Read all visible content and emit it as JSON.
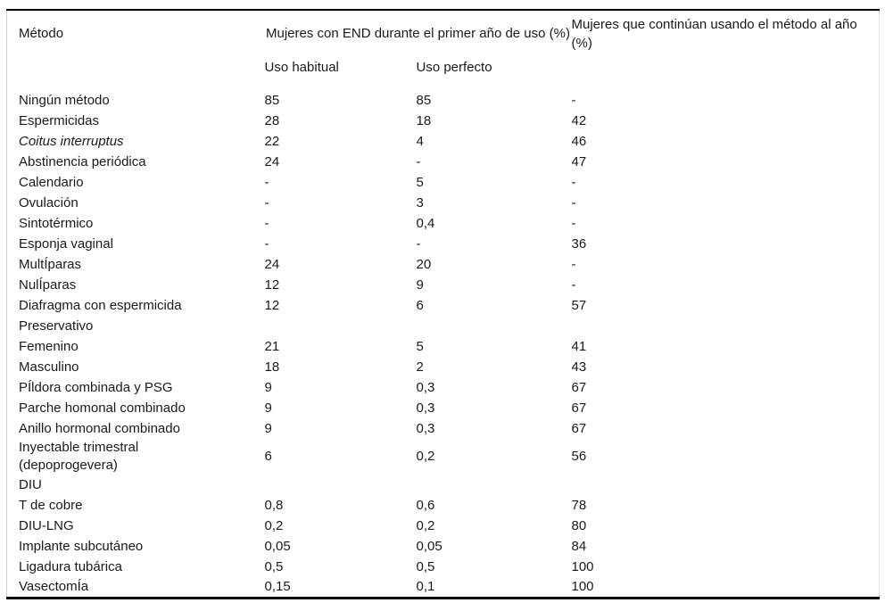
{
  "table": {
    "header": {
      "method_col": "Método",
      "group_col": "Mujeres con END durante el primer año de uso (%)",
      "continue_col": "Mujeres que continúan usando el método al año (%)",
      "sub_habitual": "Uso habitual",
      "sub_perfecto": "Uso perfecto"
    },
    "rows": [
      {
        "method": "Ningún método",
        "habitual": "85",
        "perfecto": "85",
        "continua": "-"
      },
      {
        "method": "Espermicidas",
        "habitual": "28",
        "perfecto": "18",
        "continua": "42"
      },
      {
        "method": "Coitus interruptus",
        "italic": true,
        "habitual": "22",
        "perfecto": "4",
        "continua": "46"
      },
      {
        "method": "Abstinencia periódica",
        "habitual": "24",
        "perfecto": "-",
        "continua": "47"
      },
      {
        "method": "Calendario",
        "habitual": "-",
        "perfecto": "5",
        "continua": "-"
      },
      {
        "method": "Ovulación",
        "habitual": "-",
        "perfecto": "3",
        "continua": "-"
      },
      {
        "method": "Sintotérmico",
        "habitual": "-",
        "perfecto": "0,4",
        "continua": "-"
      },
      {
        "method": "Esponja vaginal",
        "habitual": "-",
        "perfecto": "-",
        "continua": "36"
      },
      {
        "method": "MultÍparas",
        "habitual": "24",
        "perfecto": "20",
        "continua": "-"
      },
      {
        "method": "NulÍparas",
        "habitual": "12",
        "perfecto": "9",
        "continua": "-"
      },
      {
        "method": "Diafragma con espermicida",
        "habitual": "12",
        "perfecto": "6",
        "continua": "57"
      },
      {
        "method": "Preservativo",
        "habitual": "",
        "perfecto": "",
        "continua": ""
      },
      {
        "method": "Femenino",
        "habitual": "21",
        "perfecto": "5",
        "continua": "41"
      },
      {
        "method": "Masculino",
        "habitual": "18",
        "perfecto": "2",
        "continua": "43"
      },
      {
        "method": "PÍldora combinada y PSG",
        "habitual": "9",
        "perfecto": "0,3",
        "continua": "67"
      },
      {
        "method": "Parche homonal combinado",
        "habitual": "9",
        "perfecto": "0,3",
        "continua": "67"
      },
      {
        "method": "Anillo hormonal combinado",
        "habitual": "9",
        "perfecto": "0,3",
        "continua": "67"
      },
      {
        "method": "Inyectable trimestral",
        "method_line2": "(depoprogevera)",
        "habitual": "6",
        "perfecto": "0,2",
        "continua": "56"
      },
      {
        "method": "DIU",
        "habitual": "",
        "perfecto": "",
        "continua": ""
      },
      {
        "method": "T de cobre",
        "habitual": "0,8",
        "perfecto": "0,6",
        "continua": "78"
      },
      {
        "method": "DIU-LNG",
        "habitual": "0,2",
        "perfecto": "0,2",
        "continua": "80"
      },
      {
        "method": "Implante subcutáneo",
        "habitual": "0,05",
        "perfecto": "0,05",
        "continua": "84"
      },
      {
        "method": "Ligadura tubárica",
        "habitual": "0,5",
        "perfecto": "0,5",
        "continua": "100"
      },
      {
        "method": "VasectomÍa",
        "habitual": "0,15",
        "perfecto": "0,1",
        "continua": "100"
      }
    ]
  },
  "colors": {
    "text": "#1a1a1a",
    "rule_top": "#000000",
    "rule_bottom": "#000000",
    "side_border": "#cfcfcf",
    "background": "#ffffff"
  }
}
